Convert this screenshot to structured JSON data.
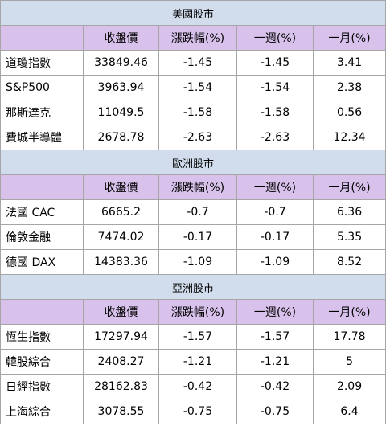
{
  "columns": [
    "",
    "收盤價",
    "漲跌幅(%)",
    "一週(%)",
    "一月(%)"
  ],
  "sections": [
    {
      "title": "美國股市",
      "rows": [
        {
          "name": "道瓊指數",
          "close": "33849.46",
          "change": "-1.45",
          "week": "-1.45",
          "month": "3.41"
        },
        {
          "name": "S&P500",
          "close": "3963.94",
          "change": "-1.54",
          "week": "-1.54",
          "month": "2.38"
        },
        {
          "name": "那斯達克",
          "close": "11049.5",
          "change": "-1.58",
          "week": "-1.58",
          "month": "0.56"
        },
        {
          "name": "費城半導體",
          "close": "2678.78",
          "change": "-2.63",
          "week": "-2.63",
          "month": "12.34"
        }
      ]
    },
    {
      "title": "歐洲股市",
      "rows": [
        {
          "name": "法國 CAC",
          "close": "6665.2",
          "change": "-0.7",
          "week": "-0.7",
          "month": "6.36"
        },
        {
          "name": "倫敦金融",
          "close": "7474.02",
          "change": "-0.17",
          "week": "-0.17",
          "month": "5.35"
        },
        {
          "name": "德國 DAX",
          "close": "14383.36",
          "change": "-1.09",
          "week": "-1.09",
          "month": "8.52"
        }
      ]
    },
    {
      "title": "亞洲股市",
      "rows": [
        {
          "name": "恆生指數",
          "close": "17297.94",
          "change": "-1.57",
          "week": "-1.57",
          "month": "17.78"
        },
        {
          "name": "韓股綜合",
          "close": "2408.27",
          "change": "-1.21",
          "week": "-1.21",
          "month": "5"
        },
        {
          "name": "日經指數",
          "close": "28162.83",
          "change": "-0.42",
          "week": "-0.42",
          "month": "2.09"
        },
        {
          "name": "上海綜合",
          "close": "3078.55",
          "change": "-0.75",
          "week": "-0.75",
          "month": "6.4"
        }
      ]
    }
  ],
  "colors": {
    "region_header_bg": "#d1dcec",
    "column_header_bg": "#d8c2eb",
    "border": "#a6a6a6"
  }
}
